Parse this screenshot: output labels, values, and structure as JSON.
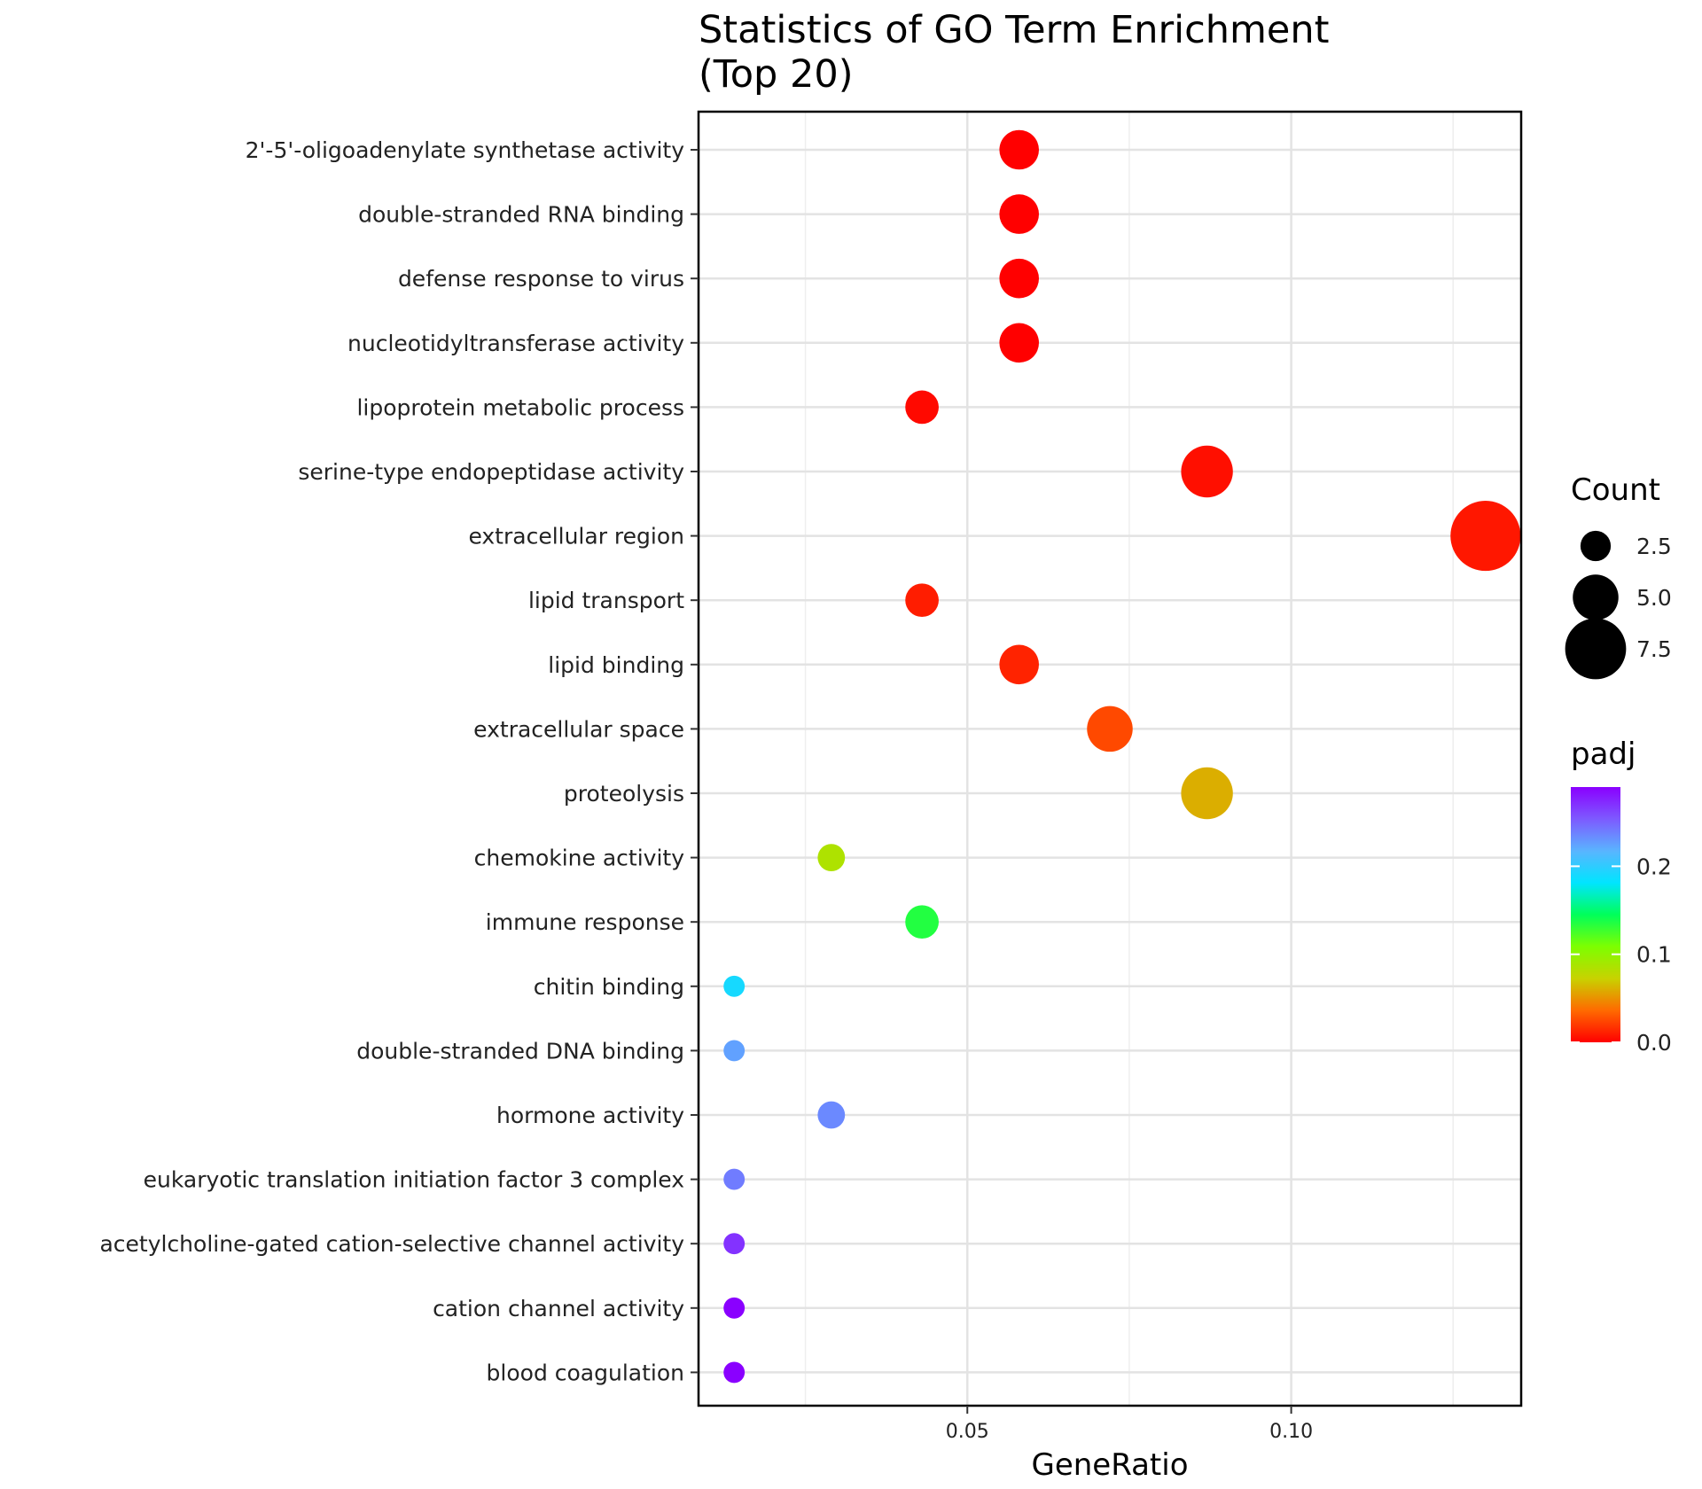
{
  "chart_data": {
    "type": "scatter",
    "title_lines": [
      "Statistics of GO Term Enrichment",
      "(Top 20)"
    ],
    "xlabel": "GeneRatio",
    "ylabel": "",
    "xlim": [
      0.0085,
      0.1355
    ],
    "xticks": [
      0.05,
      0.1
    ],
    "xtick_labels": [
      "0.05",
      "0.10"
    ],
    "x_minor_gridlines": [
      0.025,
      0.075,
      0.125
    ],
    "grid": true,
    "legend_position": "right",
    "points": [
      {
        "term": "2'-5'-oligoadenylate synthetase activity",
        "gene_ratio": 0.058,
        "count": 4,
        "padj": 0.0
      },
      {
        "term": "double-stranded RNA binding",
        "gene_ratio": 0.058,
        "count": 4,
        "padj": 0.0
      },
      {
        "term": "defense response to virus",
        "gene_ratio": 0.058,
        "count": 4,
        "padj": 0.0
      },
      {
        "term": "nucleotidyltransferase activity",
        "gene_ratio": 0.058,
        "count": 4,
        "padj": 0.0
      },
      {
        "term": "lipoprotein metabolic process",
        "gene_ratio": 0.043,
        "count": 3,
        "padj": 0.003
      },
      {
        "term": "serine-type endopeptidase activity",
        "gene_ratio": 0.087,
        "count": 6,
        "padj": 0.005
      },
      {
        "term": "extracellular region",
        "gene_ratio": 0.13,
        "count": 9,
        "padj": 0.008
      },
      {
        "term": "lipid transport",
        "gene_ratio": 0.043,
        "count": 3,
        "padj": 0.01
      },
      {
        "term": "lipid binding",
        "gene_ratio": 0.058,
        "count": 4,
        "padj": 0.012
      },
      {
        "term": "extracellular space",
        "gene_ratio": 0.072,
        "count": 5,
        "padj": 0.025
      },
      {
        "term": "proteolysis",
        "gene_ratio": 0.087,
        "count": 6,
        "padj": 0.06
      },
      {
        "term": "chemokine activity",
        "gene_ratio": 0.029,
        "count": 2,
        "padj": 0.085
      },
      {
        "term": "immune response",
        "gene_ratio": 0.043,
        "count": 3,
        "padj": 0.135
      },
      {
        "term": "chitin binding",
        "gene_ratio": 0.014,
        "count": 1,
        "padj": 0.19
      },
      {
        "term": "double-stranded DNA binding",
        "gene_ratio": 0.014,
        "count": 1,
        "padj": 0.225
      },
      {
        "term": "hormone activity",
        "gene_ratio": 0.029,
        "count": 2,
        "padj": 0.235
      },
      {
        "term": "eukaryotic translation initiation factor 3 complex",
        "gene_ratio": 0.014,
        "count": 1,
        "padj": 0.24
      },
      {
        "term": "acetylcholine-gated cation-selective channel activity",
        "gene_ratio": 0.014,
        "count": 1,
        "padj": 0.27
      },
      {
        "term": "cation channel activity",
        "gene_ratio": 0.014,
        "count": 1,
        "padj": 0.29
      },
      {
        "term": "blood coagulation",
        "gene_ratio": 0.014,
        "count": 1,
        "padj": 0.29
      }
    ],
    "size_legend": {
      "title": "Count",
      "entries": [
        {
          "label": "2.5",
          "value": 2.5
        },
        {
          "label": "5.0",
          "value": 5.0
        },
        {
          "label": "7.5",
          "value": 7.5
        }
      ]
    },
    "color_legend": {
      "title": "padj",
      "range": [
        0.0,
        0.29
      ],
      "ticks": [
        {
          "label": "0.0",
          "value": 0.0
        },
        {
          "label": "0.1",
          "value": 0.1
        },
        {
          "label": "0.2",
          "value": 0.2
        }
      ],
      "colors_low_to_high": [
        "#ff0000",
        "#ff6a00",
        "#c8d200",
        "#7dff00",
        "#00ff5a",
        "#00e5ff",
        "#5ab4ff",
        "#7d5aff",
        "#8a00ff"
      ]
    }
  }
}
